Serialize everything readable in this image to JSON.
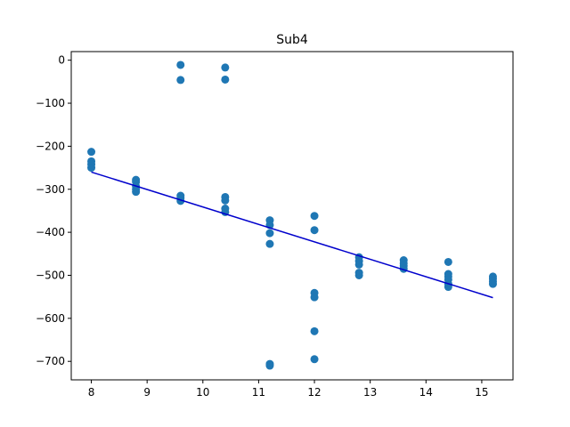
{
  "chart_data": {
    "type": "scatter",
    "title": "Sub4",
    "xlabel": "",
    "ylabel": "",
    "xlim": [
      7.64,
      15.56
    ],
    "ylim": [
      -743,
      20
    ],
    "xticks": [
      8,
      9,
      10,
      11,
      12,
      13,
      14,
      15
    ],
    "yticks": [
      0,
      -100,
      -200,
      -300,
      -400,
      -500,
      -600,
      -700
    ],
    "grid": false,
    "colors": {
      "points": "#1f77b4",
      "fit_line": "#0000cc",
      "axes": "#000000"
    },
    "series": [
      {
        "marker": "o",
        "points": [
          [
            8.0,
            -213
          ],
          [
            8.0,
            -235
          ],
          [
            8.0,
            -242
          ],
          [
            8.0,
            -250
          ],
          [
            8.8,
            -278
          ],
          [
            8.8,
            -283
          ],
          [
            8.8,
            -293
          ],
          [
            8.8,
            -300
          ],
          [
            8.8,
            -306
          ],
          [
            9.6,
            -11
          ],
          [
            9.6,
            -46
          ],
          [
            9.6,
            -315
          ],
          [
            9.6,
            -320
          ],
          [
            9.6,
            -327
          ],
          [
            10.4,
            -17
          ],
          [
            10.4,
            -45
          ],
          [
            10.4,
            -318
          ],
          [
            10.4,
            -326
          ],
          [
            10.4,
            -345
          ],
          [
            10.4,
            -353
          ],
          [
            11.2,
            -372
          ],
          [
            11.2,
            -383
          ],
          [
            11.2,
            -402
          ],
          [
            11.2,
            -427
          ],
          [
            11.2,
            -706
          ],
          [
            11.2,
            -710
          ],
          [
            12.0,
            -362
          ],
          [
            12.0,
            -395
          ],
          [
            12.0,
            -541
          ],
          [
            12.0,
            -551
          ],
          [
            12.0,
            -630
          ],
          [
            12.0,
            -695
          ],
          [
            12.8,
            -458
          ],
          [
            12.8,
            -467
          ],
          [
            12.8,
            -475
          ],
          [
            12.8,
            -494
          ],
          [
            12.8,
            -500
          ],
          [
            13.6,
            -465
          ],
          [
            13.6,
            -472
          ],
          [
            13.6,
            -478
          ],
          [
            13.6,
            -485
          ],
          [
            14.4,
            -469
          ],
          [
            14.4,
            -497
          ],
          [
            14.4,
            -503
          ],
          [
            14.4,
            -510
          ],
          [
            14.4,
            -520
          ],
          [
            14.4,
            -527
          ],
          [
            15.2,
            -503
          ],
          [
            15.2,
            -508
          ],
          [
            15.2,
            -514
          ],
          [
            15.2,
            -520
          ]
        ]
      },
      {
        "type": "line",
        "points": [
          [
            8.0,
            -260
          ],
          [
            15.2,
            -552
          ]
        ]
      }
    ]
  }
}
